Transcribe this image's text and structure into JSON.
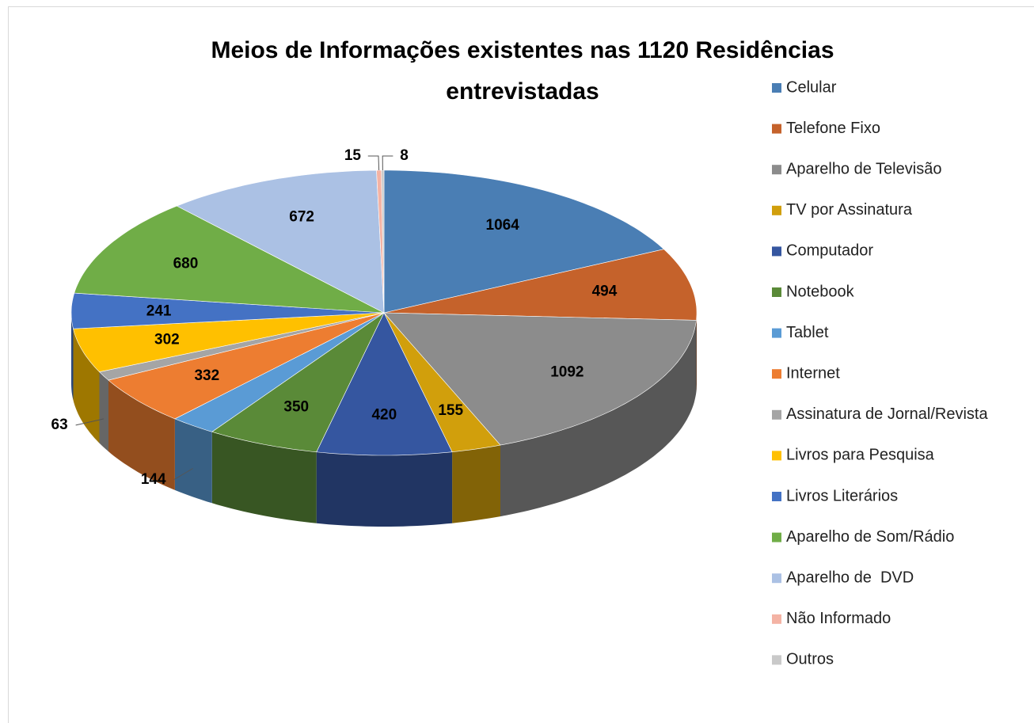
{
  "chart_data": {
    "type": "pie",
    "title": "Meios de Informações existentes nas 1120 Residências entrevistadas",
    "categories": [
      "Celular",
      "Telefone Fixo",
      "Aparelho de Televisão",
      "TV por Assinatura",
      "Computador",
      "Notebook",
      "Tablet",
      "Internet",
      "Assinatura de Jornal/Revista",
      "Livros para Pesquisa",
      "Livros Literários",
      "Aparelho de Som/Rádio",
      "Aparelho de  DVD",
      "Não Informado",
      "Outros"
    ],
    "values": [
      1064,
      494,
      1092,
      155,
      420,
      350,
      144,
      332,
      63,
      302,
      241,
      680,
      672,
      15,
      8
    ],
    "colors": [
      "#4a7eb4",
      "#c5622b",
      "#8c8c8c",
      "#d19f0c",
      "#3556a0",
      "#5a8a38",
      "#5a9bd5",
      "#ed7d31",
      "#a5a5a5",
      "#ffc000",
      "#4472c4",
      "#70ad47",
      "#abc1e4",
      "#f4b3a4",
      "#c9c9c9"
    ],
    "legend": "right"
  }
}
